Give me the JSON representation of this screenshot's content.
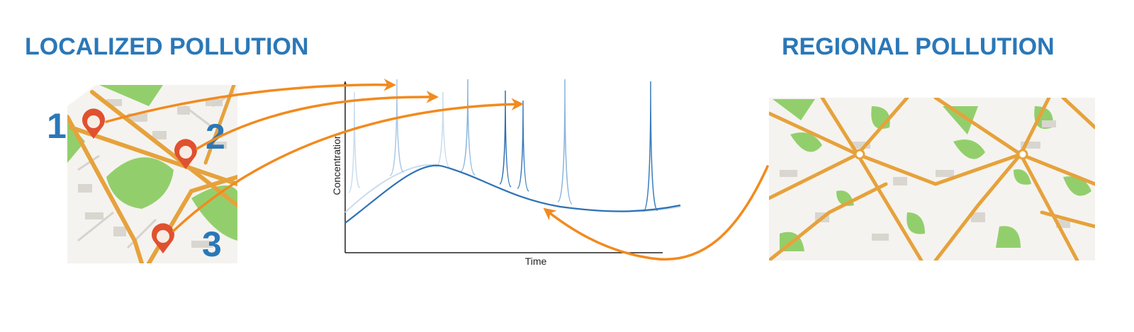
{
  "left": {
    "title": "LOCALIZED POLLUTION",
    "markers": [
      "1",
      "2",
      "3"
    ]
  },
  "chart": {
    "y_axis_label": "Concentration",
    "x_axis_label": "Time"
  },
  "right": {
    "title": "REGIONAL POLLUTION"
  }
}
